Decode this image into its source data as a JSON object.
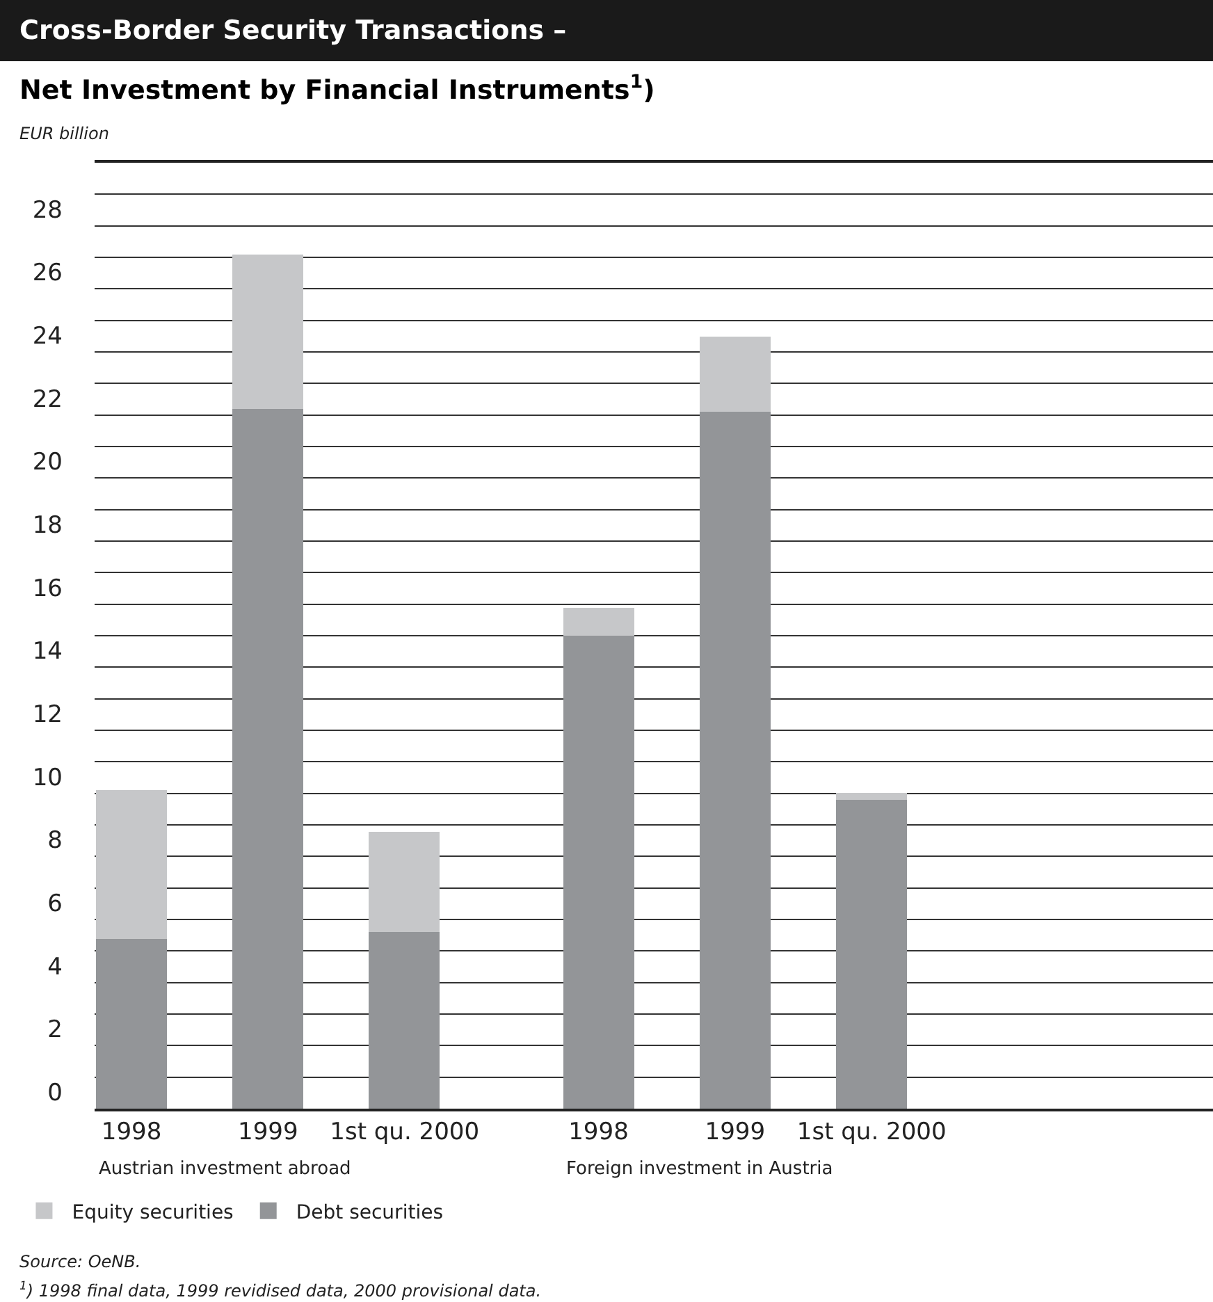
{
  "chart_data": {
    "type": "bar",
    "title": "Cross-Border Security Transactions –",
    "subtitle": "Net Investment by Financial Instruments$^{1}$)",
    "ylabel": "EUR billion",
    "categories": [
      "1998",
      "1999",
      "1st qu. 2000",
      "1998",
      "1999",
      "1st qu. 2000"
    ],
    "stacked": true,
    "series": [
      {
        "name": "Debt securities",
        "color": "#939598",
        "values": [
          5.4,
          22.2,
          5.6,
          15.0,
          22.1,
          9.8
        ]
      },
      {
        "name": "Equity securities",
        "color": "#c6c7c9",
        "values": [
          4.7,
          4.9,
          3.2,
          0.9,
          2.4,
          0.2
        ]
      }
    ],
    "ylim": [
      0,
      30
    ],
    "yticks": [
      0,
      {
        "value": 1,
        "label": null
      },
      2,
      {
        "value": 3,
        "label": null
      },
      4,
      {
        "value": 5,
        "label": null
      },
      6,
      {
        "value": 7,
        "label": null
      },
      8,
      {
        "value": 9,
        "label": null
      },
      10,
      {
        "value": 11,
        "label": null
      },
      12,
      {
        "value": 13,
        "label": null
      },
      14,
      {
        "value": 15,
        "label": null
      },
      16,
      {
        "value": 17,
        "label": null
      },
      18,
      {
        "value": 19,
        "label": null
      },
      20,
      {
        "value": 21,
        "label": null
      },
      22,
      {
        "value": 23,
        "label": null
      },
      24,
      {
        "value": 25,
        "label": null
      },
      26,
      {
        "value": 27,
        "label": null
      },
      28,
      {
        "value": 29,
        "label": null
      }
    ],
    "grid": "y",
    "legend": "bottom left",
    "annotations": [
      "Austrian investment abroad",
      "Foreign investment in Austria",
      "Source: OeNB.",
      "$^{1}$) 1998 final data, 1999 revidised data, 2000 provisional data."
    ]
  }
}
